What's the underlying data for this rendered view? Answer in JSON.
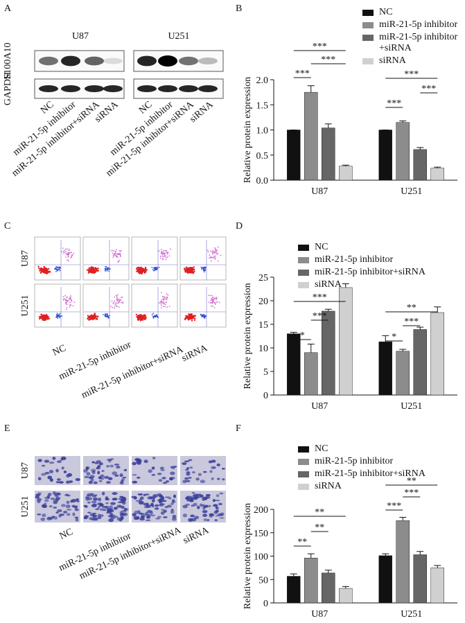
{
  "figure_a": {
    "label": "A",
    "cell_lines": [
      "U87",
      "U251"
    ],
    "proteins": [
      "S100A10",
      "GAPDH"
    ],
    "lanes": [
      "NC",
      "miR-21-5p inhibitor",
      "miR-21-5p inhibitor+siRNA",
      "siRNA"
    ]
  },
  "figure_c": {
    "label": "C",
    "cell_lines": [
      "U87",
      "U251"
    ],
    "lanes": [
      "NC",
      "miR-21-5p inhibitor",
      "miR-21-5p inhibitor+siRNA",
      "siRNA"
    ]
  },
  "figure_e": {
    "label": "E",
    "cell_lines": [
      "U87",
      "U251"
    ],
    "lanes": [
      "NC",
      "miR-21-5p inhibitor",
      "miR-21-5p inhibitor+siRNA",
      "siRNA"
    ]
  },
  "chart_data": [
    {
      "type": "bar",
      "label": "B",
      "ylabel": "Relative protein expression",
      "categories": [
        "U87",
        "U251"
      ],
      "series": [
        {
          "name": "NC",
          "color": "#111111",
          "values": [
            1.0,
            1.0
          ],
          "errors": [
            0.0,
            0.0
          ]
        },
        {
          "name": "miR-21-5p inhibitor",
          "color": "#8c8c8c",
          "values": [
            1.75,
            1.15
          ],
          "errors": [
            0.13,
            0.03
          ]
        },
        {
          "name": "miR-21-5p inhibitor +siRNA",
          "color": "#666666",
          "values": [
            1.04,
            0.61
          ],
          "errors": [
            0.08,
            0.04
          ]
        },
        {
          "name": "siRNA",
          "color": "#d0d0d0",
          "values": [
            0.28,
            0.24
          ],
          "errors": [
            0.02,
            0.02
          ]
        }
      ],
      "ylim": [
        0,
        2
      ],
      "yticks": [
        {
          "value": 0,
          "label": "0.0"
        },
        {
          "value": 0.5,
          "label": "0.5"
        },
        {
          "value": 1,
          "label": "1.0"
        },
        {
          "value": 1.5,
          "label": "1.5"
        },
        {
          "value": 2,
          "label": "2.0"
        }
      ],
      "annotations": [
        "***",
        "***",
        "***",
        "***",
        "***",
        "***"
      ]
    },
    {
      "type": "bar",
      "label": "D",
      "ylabel": "Relative protein expression",
      "categories": [
        "U87",
        "U251"
      ],
      "series": [
        {
          "name": "NC",
          "color": "#111111",
          "values": [
            13,
            11.3
          ],
          "errors": [
            0.3,
            1.3
          ]
        },
        {
          "name": "miR-21-5p inhibitor",
          "color": "#8c8c8c",
          "values": [
            9,
            9.3
          ],
          "errors": [
            1.8,
            0.4
          ]
        },
        {
          "name": "miR-21-5p inhibitor+siRNA",
          "color": "#666666",
          "values": [
            17.8,
            13.9
          ],
          "errors": [
            0.4,
            0.5
          ]
        },
        {
          "name": "siRNA",
          "color": "#d0d0d0",
          "values": [
            22.8,
            17.5
          ],
          "errors": [
            0.8,
            1.2
          ]
        }
      ],
      "ylim": [
        0,
        25
      ],
      "yticks": [
        0,
        5,
        10,
        15,
        20,
        25
      ],
      "annotations": [
        "*",
        "***",
        "***",
        "*",
        "***",
        "**"
      ]
    },
    {
      "type": "bar",
      "label": "F",
      "ylabel": "Relative protein expression",
      "categories": [
        "U87",
        "U251"
      ],
      "series": [
        {
          "name": "NC",
          "color": "#111111",
          "values": [
            57,
            101
          ],
          "errors": [
            5,
            4
          ]
        },
        {
          "name": "miR-21-5p inhibitor",
          "color": "#8c8c8c",
          "values": [
            96,
            176
          ],
          "errors": [
            9,
            7
          ]
        },
        {
          "name": "miR-21-5p inhibitor+siRNA",
          "color": "#666666",
          "values": [
            64,
            103
          ],
          "errors": [
            6,
            7
          ]
        },
        {
          "name": "siRNA",
          "color": "#d0d0d0",
          "values": [
            31,
            75
          ],
          "errors": [
            4,
            5
          ]
        }
      ],
      "ylim": [
        0,
        200
      ],
      "yticks": [
        0,
        50,
        100,
        150,
        200
      ],
      "annotations": [
        "**",
        "**",
        "**",
        "***",
        "***",
        "**"
      ]
    }
  ]
}
